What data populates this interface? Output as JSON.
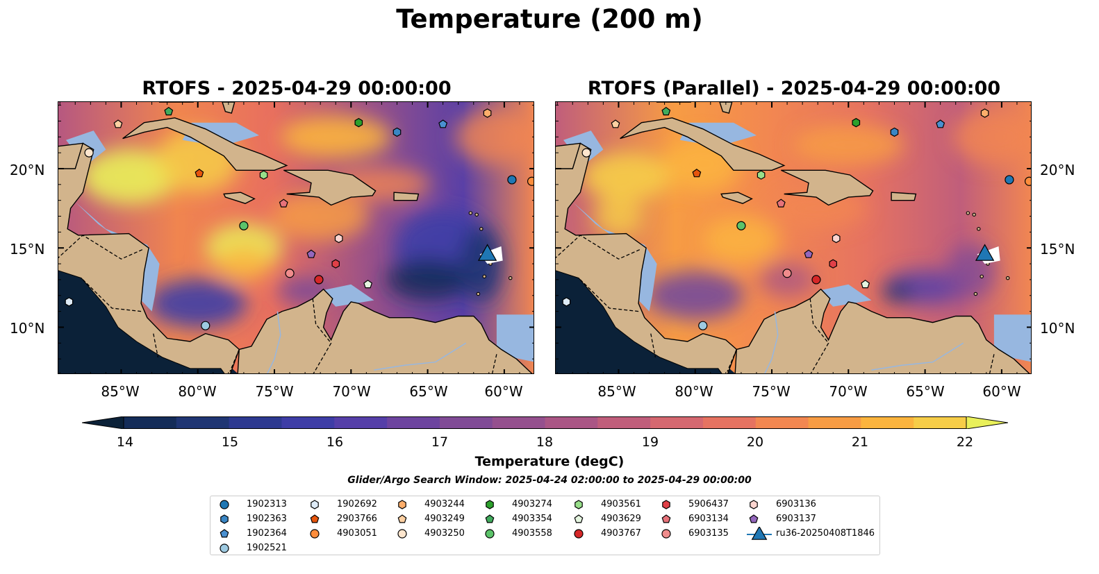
{
  "figure": {
    "title": "Temperature (200 m)",
    "panels": [
      {
        "title": "RTOFS - 2025-04-29 00:00:00"
      },
      {
        "title": "RTOFS (Parallel) - 2025-04-29 00:00:00"
      }
    ],
    "x_ticks": [
      "85°W",
      "80°W",
      "75°W",
      "70°W",
      "65°W",
      "60°W"
    ],
    "y_ticks": [
      "20°N",
      "15°N",
      "10°N"
    ],
    "colorbar": {
      "label": "Temperature (degC)",
      "ticks": [
        "14",
        "15",
        "16",
        "17",
        "18",
        "19",
        "20",
        "21",
        "22"
      ],
      "range": [
        14,
        22
      ],
      "colors": [
        "#0b2138",
        "#142c58",
        "#1f3573",
        "#2d3990",
        "#3e3da6",
        "#553fa8",
        "#6d449f",
        "#804b96",
        "#95508e",
        "#aa5685",
        "#c05e7b",
        "#d56870",
        "#e67361",
        "#f28751",
        "#f79c44",
        "#fbb43e",
        "#f6cd48",
        "#e9f05a"
      ]
    },
    "search_window": "Glider/Argo Search Window: 2025-04-24 02:00:00 to 2025-04-29 00:00:00",
    "map_colors": {
      "land": "#d2b48c",
      "shelf": "#97b7e0",
      "deep": "#0b2138"
    },
    "legend": [
      {
        "label": "1902313",
        "marker": "circle",
        "color": "#1f77b4"
      },
      {
        "label": "1902363",
        "marker": "hexagon",
        "color": "#3a86c4"
      },
      {
        "label": "1902364",
        "marker": "pentagon",
        "color": "#4a90d0"
      },
      {
        "label": "1902521",
        "marker": "circle",
        "color": "#9ecae1"
      },
      {
        "label": "1902692",
        "marker": "hexagon",
        "color": "#deebf7"
      },
      {
        "label": "2903766",
        "marker": "pentagon",
        "color": "#e6550d"
      },
      {
        "label": "4903051",
        "marker": "circle",
        "color": "#fd8d3c"
      },
      {
        "label": "4903244",
        "marker": "hexagon",
        "color": "#fdae6b"
      },
      {
        "label": "4903249",
        "marker": "pentagon",
        "color": "#fdd0a2"
      },
      {
        "label": "4903250",
        "marker": "circle",
        "color": "#fee6ce"
      },
      {
        "label": "4903274",
        "marker": "hexagon",
        "color": "#2ca02c"
      },
      {
        "label": "4903354",
        "marker": "pentagon",
        "color": "#41ab5d"
      },
      {
        "label": "4903558",
        "marker": "circle",
        "color": "#5cc36a"
      },
      {
        "label": "4903561",
        "marker": "hexagon",
        "color": "#98df8a"
      },
      {
        "label": "4903629",
        "marker": "pentagon",
        "color": "#e5f5e0"
      },
      {
        "label": "4903767",
        "marker": "circle",
        "color": "#d62728"
      },
      {
        "label": "5906437",
        "marker": "hexagon",
        "color": "#e04048"
      },
      {
        "label": "6903134",
        "marker": "pentagon",
        "color": "#e7727a"
      },
      {
        "label": "6903135",
        "marker": "circle",
        "color": "#f08c8c"
      },
      {
        "label": "6903136",
        "marker": "hexagon",
        "color": "#fcd5d0"
      },
      {
        "label": "6903137",
        "marker": "pentagon",
        "color": "#9467bd"
      },
      {
        "label": "ru36-20250408T1846",
        "marker": "triangle",
        "color": "#1f77b4"
      }
    ],
    "observations": [
      {
        "id": "1902313",
        "lon": -59.5,
        "lat": 19.3
      },
      {
        "id": "1902363",
        "lon": -67.0,
        "lat": 22.3
      },
      {
        "id": "1902364",
        "lon": -64.0,
        "lat": 22.8
      },
      {
        "id": "1902521",
        "lon": -79.5,
        "lat": 10.1
      },
      {
        "id": "1902692",
        "lon": -88.4,
        "lat": 11.6
      },
      {
        "id": "2903766",
        "lon": -79.9,
        "lat": 19.7
      },
      {
        "id": "4903051",
        "lon": -58.2,
        "lat": 19.2
      },
      {
        "id": "4903244",
        "lon": -61.1,
        "lat": 23.5
      },
      {
        "id": "4903249",
        "lon": -85.2,
        "lat": 22.8
      },
      {
        "id": "4903250",
        "lon": -87.1,
        "lat": 21.0
      },
      {
        "id": "4903274",
        "lon": -69.5,
        "lat": 22.9
      },
      {
        "id": "4903354",
        "lon": -81.9,
        "lat": 23.6
      },
      {
        "id": "4903558",
        "lon": -77.0,
        "lat": 16.4
      },
      {
        "id": "4903561",
        "lon": -75.7,
        "lat": 19.6
      },
      {
        "id": "4903629",
        "lon": -68.9,
        "lat": 12.7
      },
      {
        "id": "4903767",
        "lon": -72.1,
        "lat": 13.0
      },
      {
        "id": "5906437",
        "lon": -71.0,
        "lat": 14.0
      },
      {
        "id": "6903134",
        "lon": -74.4,
        "lat": 17.8
      },
      {
        "id": "6903135",
        "lon": -74.0,
        "lat": 13.4
      },
      {
        "id": "6903136",
        "lon": -70.8,
        "lat": 15.6
      },
      {
        "id": "6903137",
        "lon": -72.6,
        "lat": 14.6
      },
      {
        "id": "ru36-20250408T1846",
        "lon": -61.1,
        "lat": 14.6
      }
    ]
  }
}
